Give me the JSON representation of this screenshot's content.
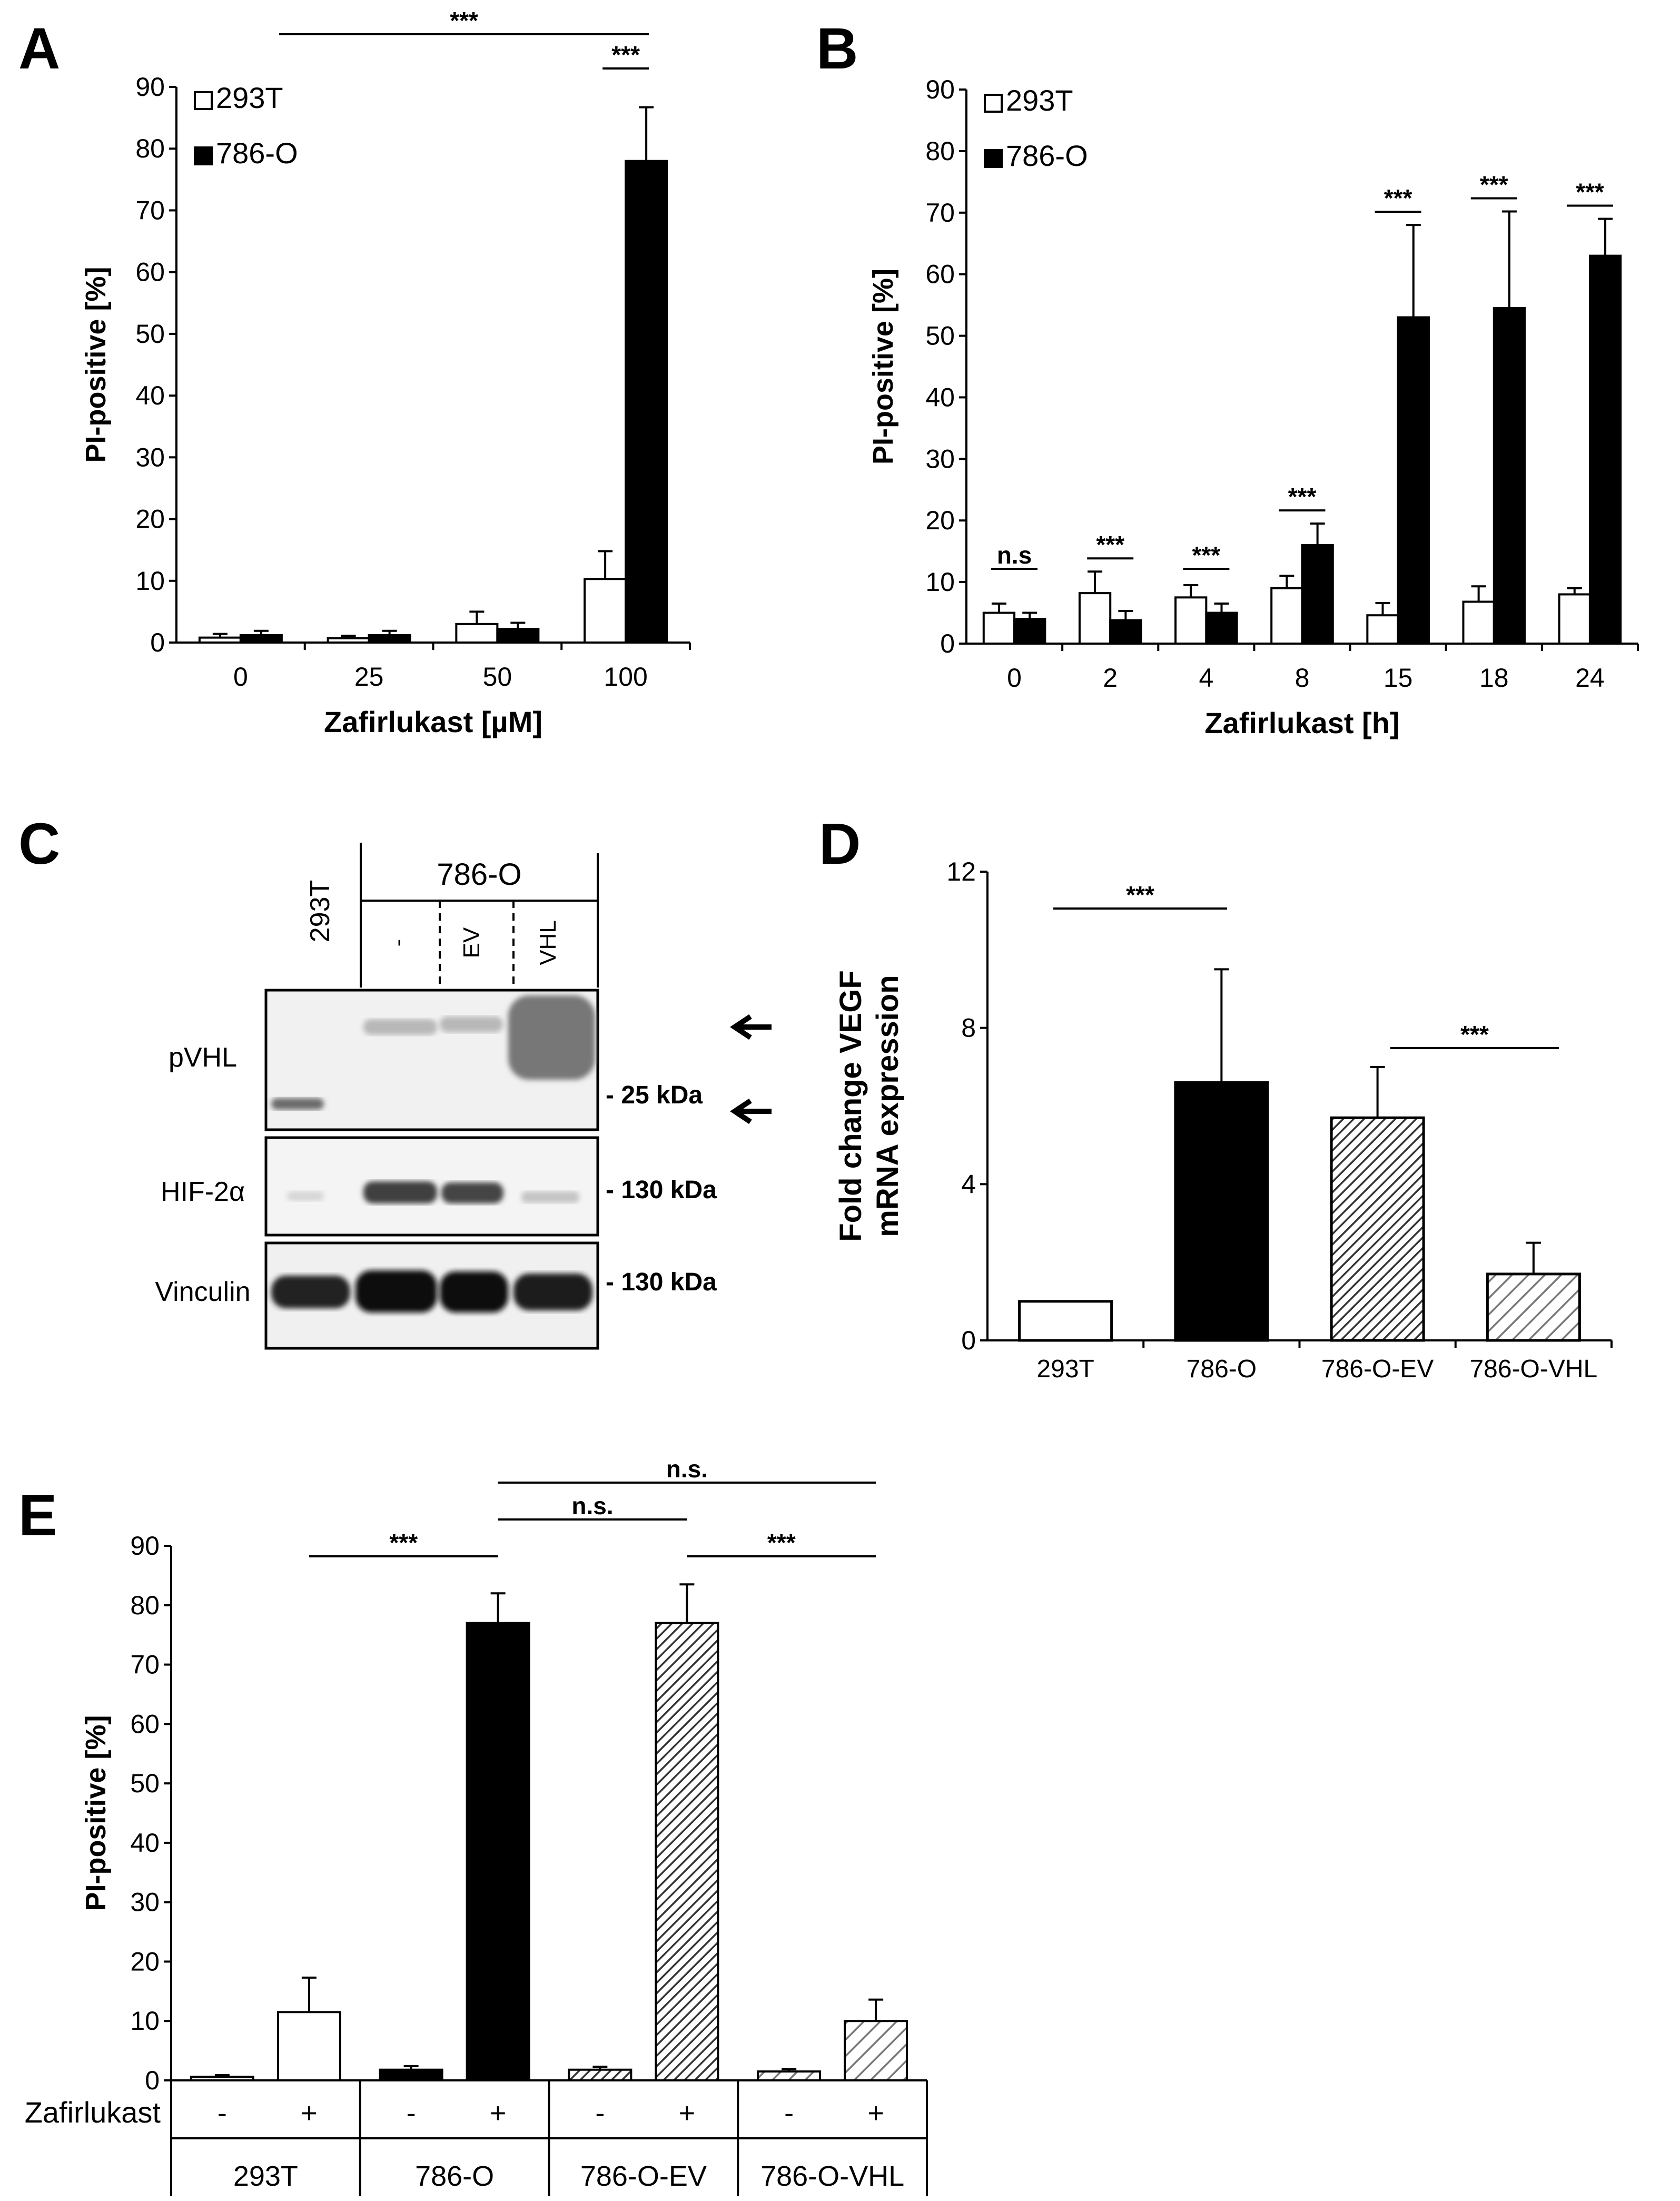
{
  "panels": {
    "A": {
      "letter": "A"
    },
    "B": {
      "letter": "B"
    },
    "C": {
      "letter": "C"
    },
    "D": {
      "letter": "D"
    },
    "E": {
      "letter": "E"
    }
  },
  "blot": {
    "group_label": "786-O",
    "control_lane": "293T",
    "lanes": [
      "-",
      "EV",
      "VHL"
    ],
    "rows": [
      "pVHL",
      "HIF-2α",
      "Vinculin"
    ],
    "markers": [
      "- 25 kDa",
      "- 130 kDa",
      "- 130 kDa"
    ]
  },
  "chart_data": [
    {
      "panel": "A",
      "type": "bar",
      "categories": [
        "0",
        "25",
        "50",
        "100"
      ],
      "series": [
        {
          "name": "293T",
          "values": [
            0.8,
            0.7,
            3.0,
            10.3
          ],
          "errors": [
            0.6,
            0.4,
            2.0,
            4.5
          ],
          "color": "#ffffff"
        },
        {
          "name": "786-O",
          "values": [
            1.2,
            1.2,
            2.2,
            78.0
          ],
          "errors": [
            0.7,
            0.7,
            1.0,
            8.7
          ],
          "color": "#000000"
        }
      ],
      "xlabel": "Zafirlukast [µM]",
      "ylabel": "PI-positive [%]",
      "ylim": [
        0,
        90
      ],
      "yticks": [
        "0",
        "10",
        "20",
        "30",
        "40",
        "50",
        "60",
        "70",
        "80",
        "90"
      ],
      "legend": "top-left",
      "significance": [
        "***",
        "***"
      ]
    },
    {
      "panel": "B",
      "type": "bar",
      "categories": [
        "0",
        "2",
        "4",
        "8",
        "15",
        "18",
        "24"
      ],
      "series": [
        {
          "name": "293T",
          "values": [
            5.0,
            8.2,
            7.5,
            9.0,
            4.6,
            6.8,
            8.0
          ],
          "errors": [
            1.5,
            3.5,
            2.0,
            2.0,
            2.0,
            2.5,
            1.0
          ],
          "color": "#ffffff"
        },
        {
          "name": "786-O",
          "values": [
            4.0,
            3.8,
            5.0,
            16.0,
            53.0,
            54.5,
            63.0
          ],
          "errors": [
            1.0,
            1.5,
            1.5,
            3.5,
            15.0,
            15.7,
            6.0
          ],
          "color": "#000000"
        }
      ],
      "xlabel": "Zafirlukast [h]",
      "ylabel": "PI-positive [%]",
      "ylim": [
        0,
        90
      ],
      "yticks": [
        "0",
        "10",
        "20",
        "30",
        "40",
        "50",
        "60",
        "70",
        "80",
        "90"
      ],
      "legend": "top-left",
      "significance": [
        "n.s",
        "***",
        "***",
        "***",
        "***",
        "***",
        "***"
      ]
    },
    {
      "panel": "D",
      "type": "bar",
      "categories": [
        "293T",
        "786-O",
        "786-O-EV",
        "786-O-VHL"
      ],
      "values": [
        1.0,
        6.6,
        5.7,
        1.7
      ],
      "errors": [
        0,
        2.9,
        1.3,
        0.8
      ],
      "fills": [
        "white",
        "black",
        "hatch-dense",
        "hatch-light"
      ],
      "ylabel": "Fold change VEGF mRNA expression",
      "ylabel_lines": [
        "Fold change VEGF",
        "mRNA expression"
      ],
      "ylim": [
        0,
        12
      ],
      "yticks": [
        "0",
        "4",
        "8",
        "12"
      ],
      "significance": [
        "***",
        "***"
      ]
    },
    {
      "panel": "E",
      "type": "bar",
      "groups": [
        "293T",
        "786-O",
        "786-O-EV",
        "786-O-VHL"
      ],
      "treatment_label": "Zafirlukast",
      "treatment_signs": [
        "-",
        "+"
      ],
      "minus_values": [
        0.6,
        1.8,
        1.8,
        1.5
      ],
      "minus_errors": [
        0.3,
        0.6,
        0.5,
        0.4
      ],
      "plus_values": [
        11.5,
        77.0,
        77.0,
        10.0
      ],
      "plus_errors": [
        5.8,
        5.0,
        6.5,
        3.6
      ],
      "fills": [
        "white",
        "black",
        "hatch-dense",
        "hatch-light"
      ],
      "ylabel": "PI-positive [%]",
      "ylim": [
        0,
        90
      ],
      "yticks": [
        "0",
        "10",
        "20",
        "30",
        "40",
        "50",
        "60",
        "70",
        "80",
        "90"
      ],
      "significance": [
        "n.s.",
        "n.s.",
        "***",
        "***"
      ]
    }
  ]
}
